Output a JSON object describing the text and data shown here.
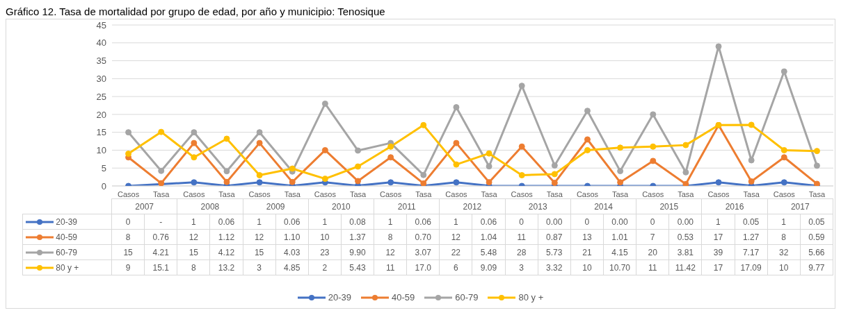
{
  "chart_data": {
    "type": "line",
    "title": "Gráfico 12. Tasa de mortalidad por grupo de edad, por año y municipio: Tenosique",
    "categories": [
      "Casos",
      "Tasa",
      "Casos",
      "Tasa",
      "Casos",
      "Tasa",
      "Casos",
      "Tasa",
      "Casos",
      "Tasa",
      "Casos",
      "Tasa",
      "Casos",
      "Tasa",
      "Casos",
      "Tasa",
      "Casos",
      "Tasa",
      "Casos",
      "Tasa",
      "Casos",
      "Tasa"
    ],
    "annotations": [
      "2007",
      "2008",
      "2009",
      "2010",
      "2011",
      "2012",
      "2013",
      "2014",
      "2015",
      "2016",
      "2017"
    ],
    "series": [
      {
        "name": "20-39",
        "color": "#4472c4",
        "values": [
          0,
          null,
          1,
          0.06,
          1,
          0.06,
          1,
          0.08,
          1,
          0.06,
          1,
          0.06,
          0,
          0,
          0,
          0,
          0,
          0,
          1,
          0.05,
          1,
          0.05
        ],
        "value_labels": [
          "0",
          "-",
          "1",
          "0.06",
          "1",
          "0.06",
          "1",
          "0.08",
          "1",
          "0.06",
          "1",
          "0.06",
          "0",
          "0.00",
          "0",
          "0.00",
          "0",
          "0.00",
          "1",
          "0.05",
          "1",
          "0.05"
        ]
      },
      {
        "name": "40-59",
        "color": "#ed7d31",
        "values": [
          8,
          0.76,
          12,
          1.12,
          12,
          1.1,
          10,
          1.37,
          8,
          0.7,
          12,
          1.04,
          11,
          0.87,
          13,
          1.01,
          7,
          0.53,
          17,
          1.27,
          8,
          0.59
        ],
        "value_labels": [
          "8",
          "0.76",
          "12",
          "1.12",
          "12",
          "1.10",
          "10",
          "1.37",
          "8",
          "0.70",
          "12",
          "1.04",
          "11",
          "0.87",
          "13",
          "1.01",
          "7",
          "0.53",
          "17",
          "1.27",
          "8",
          "0.59"
        ]
      },
      {
        "name": "60-79",
        "color": "#a5a5a5",
        "values": [
          15,
          4.21,
          15,
          4.12,
          15,
          4.03,
          23,
          9.9,
          12,
          3.07,
          22,
          5.48,
          28,
          5.73,
          21,
          4.15,
          20,
          3.81,
          39,
          7.17,
          32,
          5.66
        ],
        "value_labels": [
          "15",
          "4.21",
          "15",
          "4.12",
          "15",
          "4.03",
          "23",
          "9.90",
          "12",
          "3.07",
          "22",
          "5.48",
          "28",
          "5.73",
          "21",
          "4.15",
          "20",
          "3.81",
          "39",
          "7.17",
          "32",
          "5.66"
        ]
      },
      {
        "name": "80 y +",
        "color": "#ffc000",
        "values": [
          9,
          15.1,
          8,
          13.2,
          3,
          4.85,
          2,
          5.43,
          11,
          17.0,
          6,
          9.09,
          3,
          3.32,
          10,
          10.7,
          11,
          11.42,
          17,
          17.09,
          10,
          9.77
        ],
        "value_labels": [
          "9",
          "15.1",
          "8",
          "13.2",
          "3",
          "4.85",
          "2",
          "5.43",
          "11",
          "17.0",
          "6",
          "9.09",
          "3",
          "3.32",
          "10",
          "10.70",
          "11",
          "11.42",
          "17",
          "17.09",
          "10",
          "9.77"
        ]
      }
    ],
    "ylim": [
      0,
      45
    ],
    "yticks": [
      0,
      5,
      10,
      15,
      20,
      25,
      30,
      35,
      40,
      45
    ],
    "grid": "y",
    "legend": "bottom",
    "marker": "circle",
    "line_style": "solid"
  }
}
